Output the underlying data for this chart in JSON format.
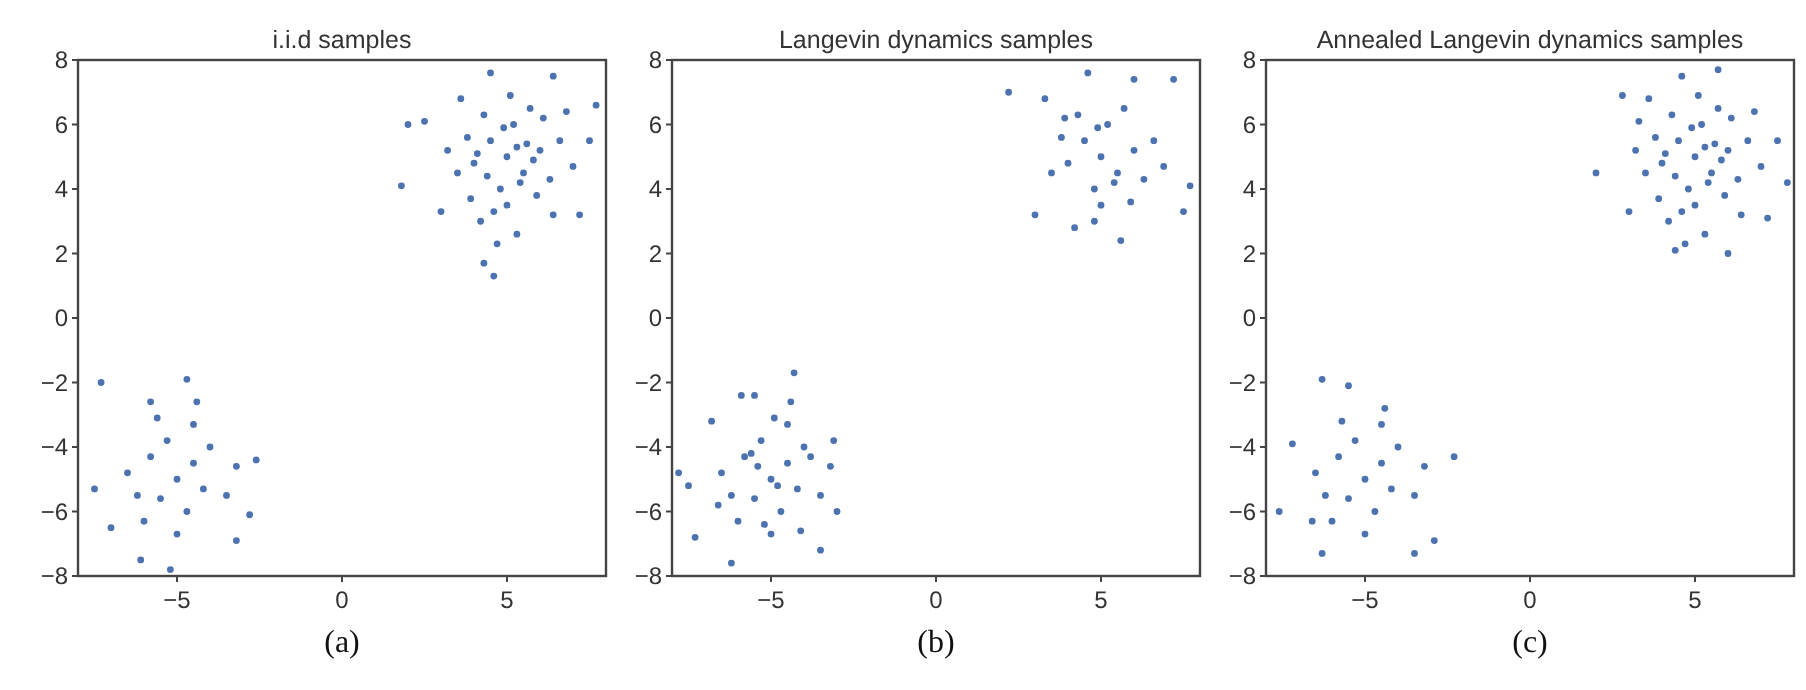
{
  "chart_data": [
    {
      "type": "scatter",
      "title": "i.i.d samples",
      "annotations": [
        "(a)"
      ],
      "xlim": [
        -8,
        8
      ],
      "ylim": [
        -8,
        8
      ],
      "xticks": [
        -5,
        0,
        5
      ],
      "yticks": [
        -8,
        -6,
        -4,
        -2,
        0,
        2,
        4,
        6,
        8
      ],
      "grid": false,
      "marker": "circle",
      "series": [
        {
          "color": "#4c72b0",
          "x": [
            5,
            4.5,
            5.5,
            4,
            6,
            5.2,
            4.8,
            3.8,
            6.3,
            5,
            4.3,
            5.7,
            3.5,
            6.6,
            4.9,
            5.4,
            4.6,
            5.9,
            3.2,
            7,
            2.5,
            4.2,
            5.1,
            6.1,
            3.9,
            5.6,
            4.4,
            6.8,
            3,
            7.5,
            1.8,
            4.7,
            5.3,
            6.4,
            3.6,
            4.6,
            4.3,
            7.7,
            4.5,
            6.4,
            2,
            7.2,
            5.8,
            4.1,
            5.3,
            -5,
            -4.5,
            -5.5,
            -4.7,
            -5.8,
            -4.2,
            -6.2,
            -5.3,
            -4,
            -3.5,
            -6.5,
            -5,
            -4.5,
            -6,
            -3.2,
            -7.3,
            -4.7,
            -2.6,
            -7.5,
            -6.1,
            -5.2,
            -3.2,
            -2.8,
            -5.8,
            -4.4,
            -7,
            -5.6
          ],
          "values": [
            5,
            5.5,
            4.5,
            4.8,
            5.2,
            6,
            4,
            5.6,
            4.3,
            3.5,
            6.3,
            6.5,
            4.5,
            5.5,
            5.9,
            4.2,
            3.3,
            3.8,
            5.2,
            4.7,
            6.1,
            3,
            6.9,
            6.2,
            3.7,
            5.4,
            4.4,
            6.4,
            3.3,
            5.5,
            4.1,
            2.3,
            2.6,
            3.2,
            6.8,
            1.3,
            1.7,
            6.6,
            7.6,
            7.5,
            6,
            3.2,
            4.9,
            5.1,
            5.3,
            -5,
            -4.5,
            -5.6,
            -6,
            -4.3,
            -5.3,
            -5.5,
            -3.8,
            -4,
            -5.5,
            -4.8,
            -6.7,
            -3.3,
            -6.3,
            -4.6,
            -2,
            -1.9,
            -4.4,
            -5.3,
            -7.5,
            -7.8,
            -6.9,
            -6.1,
            -2.6,
            -2.6,
            -6.5,
            -3.1
          ]
        }
      ]
    },
    {
      "type": "scatter",
      "title": "Langevin dynamics samples",
      "annotations": [
        "(b)"
      ],
      "xlim": [
        -8,
        8
      ],
      "ylim": [
        -8,
        8
      ],
      "xticks": [
        -5,
        0,
        5
      ],
      "yticks": [
        -8,
        -6,
        -4,
        -2,
        0,
        2,
        4,
        6,
        8
      ],
      "grid": false,
      "marker": "circle",
      "series": [
        {
          "color": "#4c72b0",
          "x": [
            5,
            4.5,
            5.5,
            4,
            6,
            5.2,
            4.8,
            3.8,
            6.3,
            5,
            4.3,
            5.7,
            3.5,
            6.6,
            4.9,
            5.4,
            3,
            7.2,
            2.2,
            7.7,
            4.2,
            5.6,
            3.3,
            6.9,
            4.8,
            5.9,
            4.6,
            6,
            7.5,
            3.9,
            -5,
            -4.5,
            -5.5,
            -4.7,
            -5.8,
            -4.2,
            -6.2,
            -5.3,
            -4,
            -3.5,
            -6.5,
            -5,
            -4.5,
            -6,
            -3.2,
            -6.8,
            -4.4,
            -3,
            -7.8,
            -6.2,
            -5.9,
            -3.5,
            -3.1,
            -5.5,
            -4.3,
            -7.3,
            -5.6,
            -4.8,
            -5.2,
            -6.6,
            -3.8,
            -4.1,
            -5.4,
            -4.9,
            -7.5
          ],
          "values": [
            5,
            5.5,
            4.5,
            4.8,
            5.2,
            6,
            4,
            5.6,
            4.3,
            3.5,
            6.3,
            6.5,
            4.5,
            5.5,
            5.9,
            4.2,
            3.2,
            7.4,
            7,
            4.1,
            2.8,
            2.4,
            6.8,
            4.7,
            3,
            3.6,
            7.6,
            7.4,
            3.3,
            6.2,
            -5,
            -4.5,
            -5.6,
            -6,
            -4.3,
            -5.3,
            -5.5,
            -3.8,
            -4,
            -5.5,
            -4.8,
            -6.7,
            -3.3,
            -6.3,
            -4.6,
            -3.2,
            -2.6,
            -6,
            -4.8,
            -7.6,
            -2.4,
            -7.2,
            -3.8,
            -2.4,
            -1.7,
            -6.8,
            -4.2,
            -5.2,
            -6.4,
            -5.8,
            -4.3,
            -6.6,
            -4.6,
            -3.1,
            -5.2
          ]
        }
      ]
    },
    {
      "type": "scatter",
      "title": "Annealed Langevin dynamics samples",
      "annotations": [
        "(c)"
      ],
      "xlim": [
        -8,
        8
      ],
      "ylim": [
        -8,
        8
      ],
      "xticks": [
        -5,
        0,
        5
      ],
      "yticks": [
        -8,
        -6,
        -4,
        -2,
        0,
        2,
        4,
        6,
        8
      ],
      "grid": false,
      "marker": "circle",
      "series": [
        {
          "color": "#4c72b0",
          "x": [
            5,
            4.5,
            5.5,
            4,
            6,
            5.2,
            4.8,
            3.8,
            6.3,
            5,
            4.3,
            5.7,
            3.5,
            6.6,
            4.9,
            5.4,
            4.6,
            5.9,
            3.2,
            7,
            2,
            4.2,
            5.1,
            6.1,
            3.9,
            5.6,
            4.4,
            6.8,
            3,
            7.5,
            2.8,
            4.7,
            5.3,
            6.4,
            3.6,
            4.4,
            6,
            7.8,
            5.7,
            4.6,
            7.2,
            5.8,
            4.1,
            5.3,
            3.3,
            -5,
            -4.5,
            -5.5,
            -4.7,
            -5.8,
            -4.2,
            -6.2,
            -5.3,
            -4,
            -3.5,
            -6.5,
            -5,
            -4.5,
            -6,
            -3.2,
            -6.3,
            -5.5,
            -2.3,
            -7.6,
            -6.3,
            -3.5,
            -2.9,
            -7.2,
            -4.4,
            -6.6,
            -5.7
          ],
          "values": [
            5,
            5.5,
            4.5,
            4.8,
            5.2,
            6,
            4,
            5.6,
            4.3,
            3.5,
            6.3,
            6.5,
            4.5,
            5.5,
            5.9,
            4.2,
            3.3,
            3.8,
            5.2,
            4.7,
            4.5,
            3,
            6.9,
            6.2,
            3.7,
            5.4,
            4.4,
            6.4,
            3.3,
            5.5,
            6.9,
            2.3,
            2.6,
            3.2,
            6.8,
            2.1,
            2,
            4.2,
            7.7,
            7.5,
            3.1,
            4.9,
            5.1,
            5.3,
            6.1,
            -5,
            -4.5,
            -5.6,
            -6,
            -4.3,
            -5.3,
            -5.5,
            -3.8,
            -4,
            -5.5,
            -4.8,
            -6.7,
            -3.3,
            -6.3,
            -4.6,
            -7.3,
            -2.1,
            -4.3,
            -6,
            -1.9,
            -7.3,
            -6.9,
            -3.9,
            -2.8,
            -6.3,
            -3.2
          ]
        }
      ]
    }
  ]
}
